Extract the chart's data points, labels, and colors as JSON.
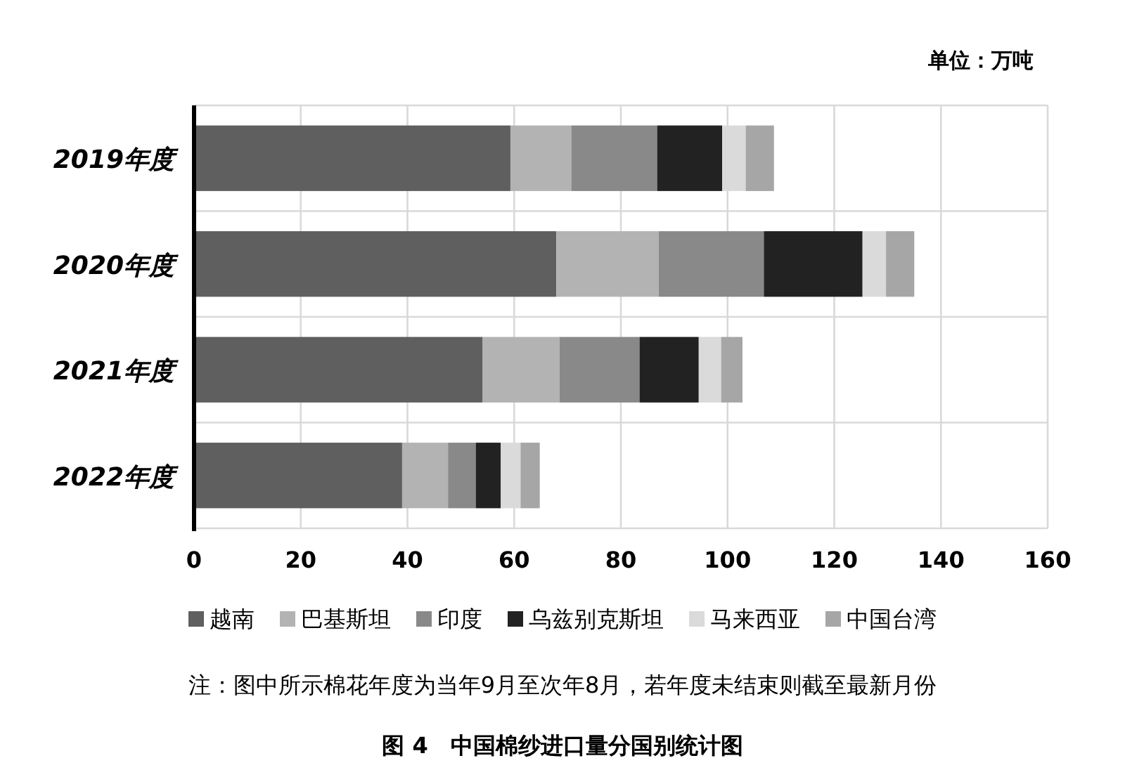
{
  "chart_data": {
    "type": "bar",
    "orientation": "horizontal",
    "stacked": true,
    "title": "图 4　中国棉纱进口量分国别统计图",
    "categories": [
      "2019年度",
      "2020年度",
      "2021年度",
      "2022年度"
    ],
    "series": [
      {
        "name": "越南",
        "color": "#5f5f5f",
        "values": [
          59.3,
          67.9,
          54.1,
          39.0
        ]
      },
      {
        "name": "巴基斯坦",
        "color": "#b3b3b3",
        "values": [
          11.4,
          19.2,
          14.4,
          8.6
        ]
      },
      {
        "name": "印度",
        "color": "#898989",
        "values": [
          16.1,
          19.7,
          15.0,
          5.2
        ]
      },
      {
        "name": "乌兹别克斯坦",
        "color": "#222222",
        "values": [
          12.2,
          18.5,
          11.1,
          4.7
        ]
      },
      {
        "name": "马来西亚",
        "color": "#dadada",
        "values": [
          4.4,
          4.4,
          4.2,
          3.7
        ]
      },
      {
        "name": "中国台湾",
        "color": "#a6a6a6",
        "values": [
          5.3,
          5.3,
          4.0,
          3.6
        ]
      }
    ],
    "xlim": [
      0,
      160
    ],
    "xticks": [
      0,
      20,
      40,
      60,
      80,
      100,
      120,
      140,
      160
    ],
    "grid": true,
    "legend": "bottom",
    "annotations": [
      "单位：万吨",
      "注：图中所示棉花年度为当年9月至次年8月，若年度未结束则截至最新月份"
    ]
  }
}
